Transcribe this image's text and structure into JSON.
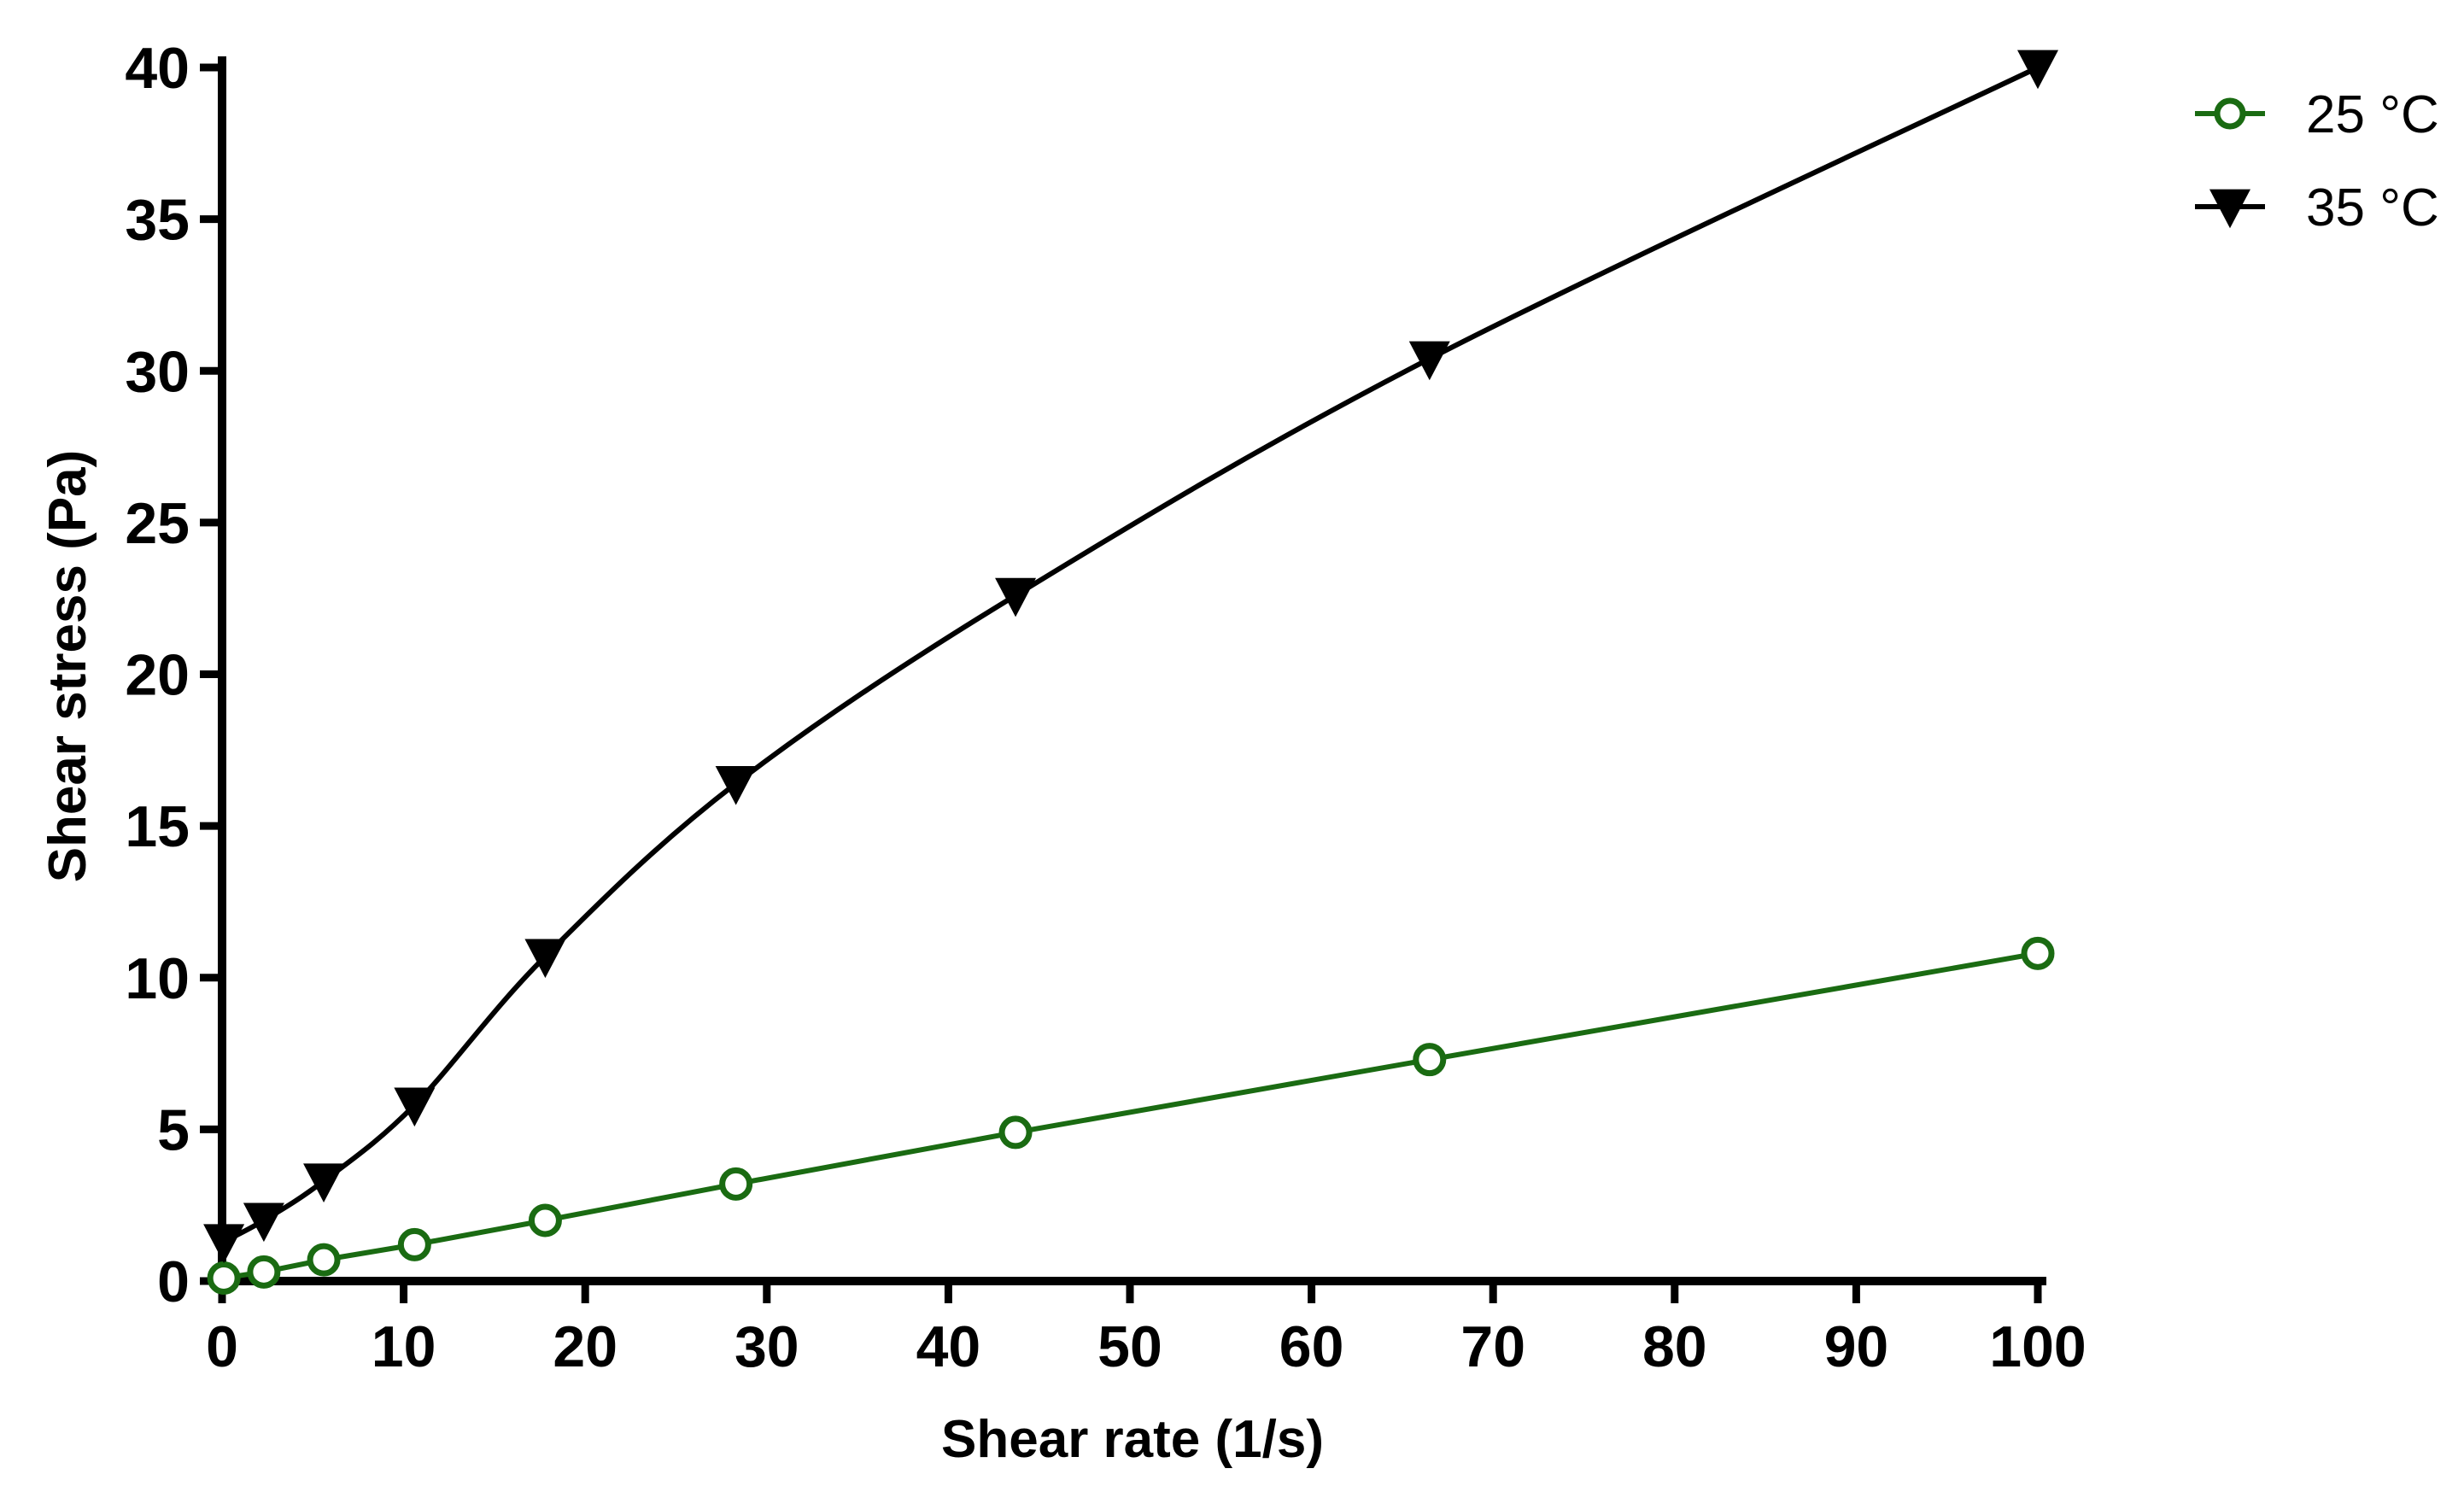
{
  "chart_data": {
    "type": "line",
    "title": "",
    "xlabel": "Shear rate (1/s)",
    "ylabel": "Shear stress (Pa)",
    "xlim": [
      0,
      100
    ],
    "ylim": [
      0,
      40
    ],
    "x_ticks": [
      "0",
      "10",
      "20",
      "30",
      "40",
      "50",
      "60",
      "70",
      "80",
      "90",
      "100"
    ],
    "y_ticks": [
      "0",
      "5",
      "10",
      "15",
      "20",
      "25",
      "30",
      "35",
      "40"
    ],
    "grid": false,
    "legend_position": "top-right",
    "series": [
      {
        "name": "25 °C",
        "color": "#1a6b12",
        "marker": "open-circle",
        "x": [
          0.1,
          2.3,
          5.6,
          10.6,
          17.8,
          28.3,
          43.7,
          66.5,
          100
        ],
        "y": [
          0.1,
          0.3,
          0.7,
          1.2,
          2.0,
          3.2,
          4.9,
          7.3,
          10.8
        ]
      },
      {
        "name": "35 °C",
        "color": "#000000",
        "marker": "filled-down-triangle",
        "x": [
          0.1,
          2.3,
          5.6,
          10.6,
          17.8,
          28.3,
          43.7,
          66.5,
          100
        ],
        "y": [
          1.3,
          2.0,
          3.3,
          5.8,
          10.7,
          16.4,
          22.6,
          30.4,
          40.0
        ]
      }
    ]
  }
}
